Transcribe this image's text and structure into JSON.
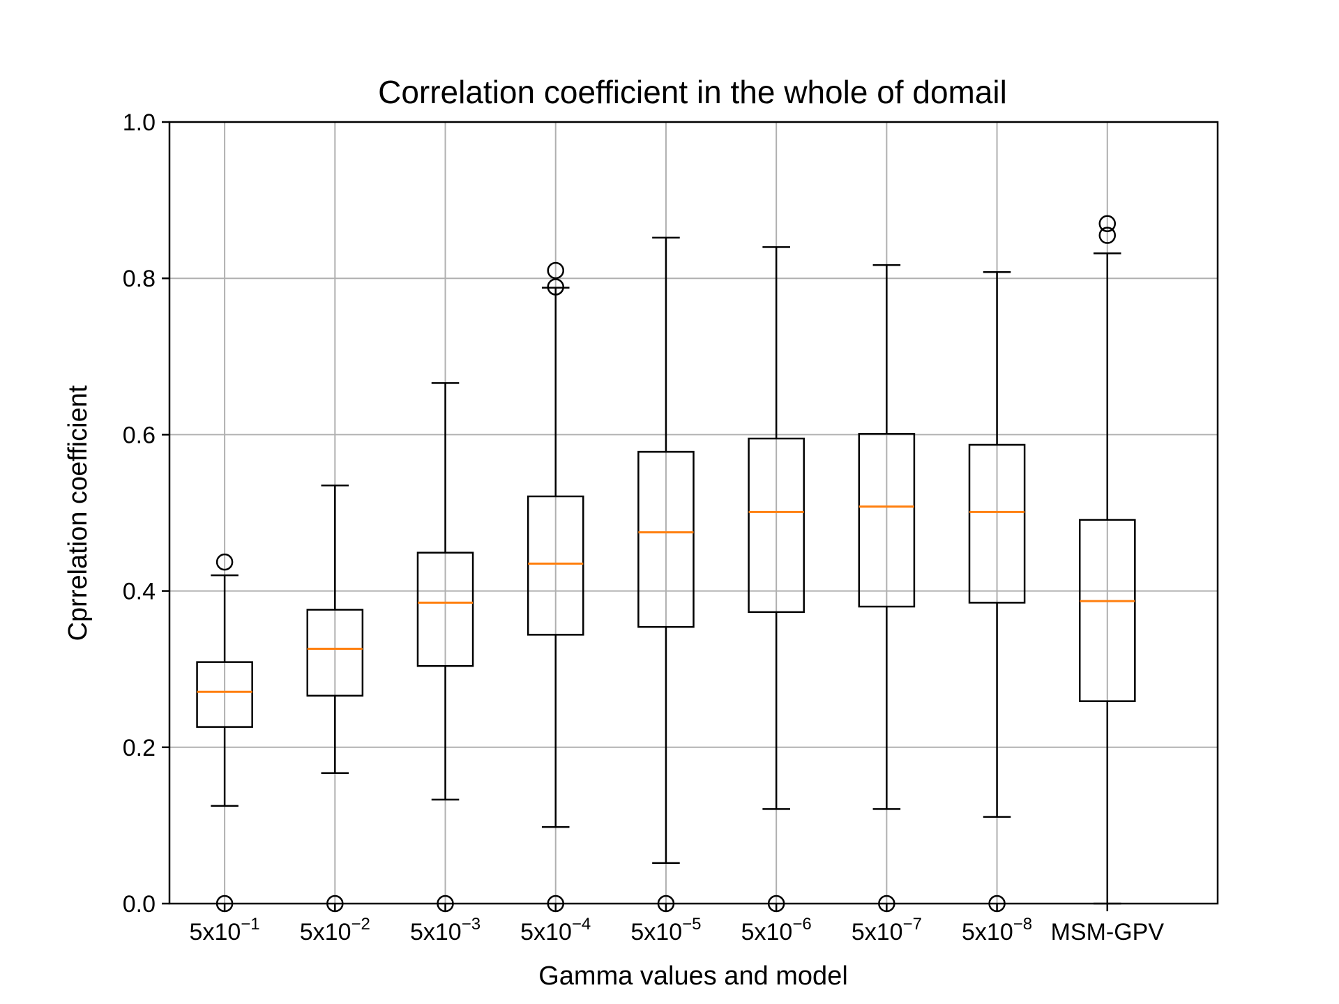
{
  "chart_data": {
    "type": "box",
    "title": "Correlation coefficient in the whole of domail",
    "xlabel": "Gamma values and model",
    "ylabel": "Cprrelation coefficient",
    "ylim": [
      0,
      1.0
    ],
    "yticks": [
      "0.0",
      "0.2",
      "0.4",
      "0.6",
      "0.8",
      "1.0"
    ],
    "grid": true,
    "categories": [
      {
        "base": "5x10",
        "exp": "−1"
      },
      {
        "base": "5x10",
        "exp": "−2"
      },
      {
        "base": "5x10",
        "exp": "−3"
      },
      {
        "base": "5x10",
        "exp": "−4"
      },
      {
        "base": "5x10",
        "exp": "−5"
      },
      {
        "base": "5x10",
        "exp": "−6"
      },
      {
        "base": "5x10",
        "exp": "−7"
      },
      {
        "base": "5x10",
        "exp": "−8"
      },
      {
        "base": "MSM-GPV",
        "exp": ""
      }
    ],
    "boxes": [
      {
        "whisker_low": 0.125,
        "q1": 0.226,
        "median": 0.271,
        "q3": 0.309,
        "whisker_high": 0.42,
        "outliers": [
          0.437,
          0.0
        ]
      },
      {
        "whisker_low": 0.167,
        "q1": 0.266,
        "median": 0.326,
        "q3": 0.376,
        "whisker_high": 0.535,
        "outliers": [
          0.0
        ]
      },
      {
        "whisker_low": 0.133,
        "q1": 0.304,
        "median": 0.385,
        "q3": 0.449,
        "whisker_high": 0.666,
        "outliers": [
          0.0
        ]
      },
      {
        "whisker_low": 0.098,
        "q1": 0.344,
        "median": 0.435,
        "q3": 0.521,
        "whisker_high": 0.788,
        "outliers": [
          0.789,
          0.81,
          0.0
        ]
      },
      {
        "whisker_low": 0.052,
        "q1": 0.354,
        "median": 0.475,
        "q3": 0.578,
        "whisker_high": 0.852,
        "outliers": [
          0.0
        ]
      },
      {
        "whisker_low": 0.121,
        "q1": 0.373,
        "median": 0.501,
        "q3": 0.595,
        "whisker_high": 0.84,
        "outliers": [
          0.0
        ]
      },
      {
        "whisker_low": 0.121,
        "q1": 0.38,
        "median": 0.508,
        "q3": 0.601,
        "whisker_high": 0.817,
        "outliers": [
          0.0
        ]
      },
      {
        "whisker_low": 0.111,
        "q1": 0.385,
        "median": 0.501,
        "q3": 0.587,
        "whisker_high": 0.808,
        "outliers": [
          0.0
        ]
      },
      {
        "whisker_low": 0.0,
        "q1": 0.259,
        "median": 0.387,
        "q3": 0.491,
        "whisker_high": 0.832,
        "outliers": [
          0.855,
          0.87
        ]
      }
    ],
    "colors": {
      "box": "#000000",
      "median": "#ff7f0e",
      "grid": "#b0b0b0"
    }
  }
}
